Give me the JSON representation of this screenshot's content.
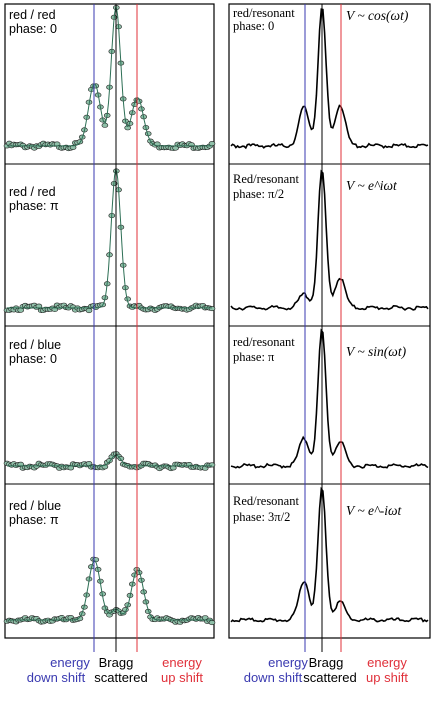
{
  "figure": {
    "left_panels": [
      {
        "line1": "red / red",
        "line2": "phase: 0"
      },
      {
        "line1": "red / red",
        "line2": "phase: π"
      },
      {
        "line1": "red / blue",
        "line2": "phase: 0"
      },
      {
        "line1": "red / blue",
        "line2": "phase: π"
      }
    ],
    "right_panels": [
      {
        "line1": "red/resonant",
        "line2": "phase: 0",
        "formula": "V ~ cos(ωt)"
      },
      {
        "line1": "Red/resonant",
        "line2": "phase: π/2",
        "formula": "V ~ e^iωt"
      },
      {
        "line1": "red/resonant",
        "line2": "phase: π",
        "formula": "V ~ sin(ωt)"
      },
      {
        "line1": "Red/resonant",
        "line2": "phase: 3π/2",
        "formula": "V ~ e^-iωt"
      }
    ],
    "bottom_labels": {
      "down": [
        "energy",
        "down shift"
      ],
      "bragg": [
        "Bragg",
        "scattered"
      ],
      "up": [
        "energy",
        "up shift"
      ]
    },
    "colors": {
      "down_line": "#3a3ab0",
      "bragg_line": "#000000",
      "up_line": "#e0303a",
      "marker_fill": "#8fbfa8",
      "trace": "#000000"
    }
  },
  "chart_data": [
    {
      "type": "scatter",
      "panel": "left-1",
      "title": "red / red, phase: 0",
      "series": [
        {
          "peaks": [
            {
              "x": 0,
              "y": 1.0
            },
            {
              "x": -1,
              "y": 0.45
            },
            {
              "x": 1,
              "y": 0.35
            }
          ],
          "baseline": 0.03
        }
      ]
    },
    {
      "type": "scatter",
      "panel": "left-2",
      "title": "red / red, phase: π",
      "series": [
        {
          "peaks": [
            {
              "x": 0,
              "y": 1.0
            }
          ],
          "baseline": 0.03
        }
      ]
    },
    {
      "type": "scatter",
      "panel": "left-3",
      "title": "red / blue, phase: 0",
      "series": [
        {
          "peaks": [
            {
              "x": 0,
              "y": 0.08
            }
          ],
          "baseline": 0.03
        }
      ]
    },
    {
      "type": "scatter",
      "panel": "left-4",
      "title": "red / blue, phase: π",
      "series": [
        {
          "peaks": [
            {
              "x": -1,
              "y": 0.45
            },
            {
              "x": 1,
              "y": 0.38
            },
            {
              "x": 0,
              "y": 0.08
            }
          ],
          "baseline": 0.03
        }
      ]
    },
    {
      "type": "line",
      "panel": "right-1",
      "title": "red/resonant, phase: 0",
      "series": [
        {
          "peaks": [
            {
              "x": 0,
              "y": 1.0
            },
            {
              "x": -1,
              "y": 0.28
            },
            {
              "x": 1,
              "y": 0.3
            }
          ],
          "baseline": 0.03
        }
      ]
    },
    {
      "type": "line",
      "panel": "right-2",
      "title": "Red/resonant, phase: π/2",
      "series": [
        {
          "peaks": [
            {
              "x": 0,
              "y": 1.0
            },
            {
              "x": -1,
              "y": 0.1
            },
            {
              "x": 1,
              "y": 0.22
            }
          ],
          "baseline": 0.03
        }
      ]
    },
    {
      "type": "line",
      "panel": "right-3",
      "title": "red/resonant, phase: π",
      "series": [
        {
          "peaks": [
            {
              "x": 0,
              "y": 1.0
            },
            {
              "x": -1,
              "y": 0.2
            },
            {
              "x": 1,
              "y": 0.18
            }
          ],
          "baseline": 0.03
        }
      ]
    },
    {
      "type": "line",
      "panel": "right-4",
      "title": "Red/resonant, phase: 3π/2",
      "series": [
        {
          "peaks": [
            {
              "x": 0,
              "y": 1.0
            },
            {
              "x": -1,
              "y": 0.3
            },
            {
              "x": 1,
              "y": 0.14
            }
          ],
          "baseline": 0.03
        }
      ]
    }
  ]
}
